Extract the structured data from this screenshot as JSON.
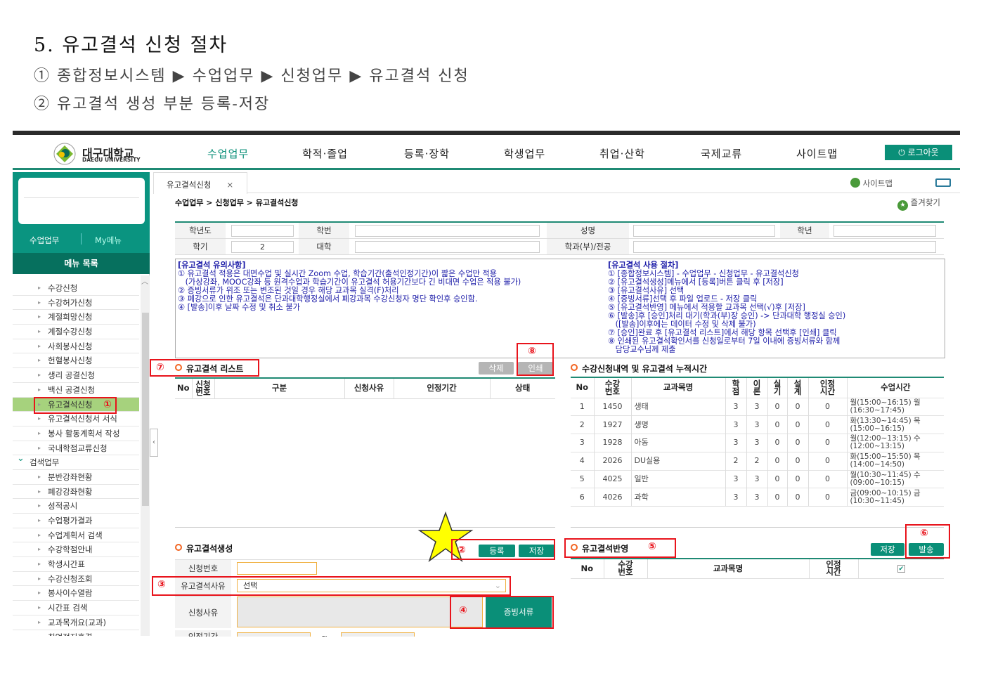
{
  "doc": {
    "title": "5. 유고결석 신청 절차",
    "step1": "① 종합정보시스템 ▶ 수업업무 ▶ 신청업무 ▶ 유고결석 신청",
    "step2": "② 유고결석 생성 부분 등록-저장"
  },
  "header": {
    "logo_ko": "대구대학교",
    "logo_en": "DAEGU UNIVERSITY",
    "nav": [
      "수업업무",
      "학적·졸업",
      "등록·장학",
      "학생업무",
      "취업·산학",
      "국제교류",
      "사이트맵"
    ],
    "logout": "로그아웃",
    "accent": "#0a8f78"
  },
  "sidebar": {
    "tabs": [
      "수업업무",
      "My메뉴"
    ],
    "menu_title": "메뉴 목록",
    "items": [
      "수강신청",
      "수강허가신청",
      "계절희망신청",
      "계절수강신청",
      "사회봉사신청",
      "헌혈봉사신청",
      "생리 공결신청",
      "백신 공결신청",
      "유고결석신청",
      "유고결석신청서 서식",
      "봉사 활동계획서 작성",
      "국내학점교류신청",
      "검색업무",
      "분반강좌현황",
      "폐강강좌현황",
      "성적공시",
      "수업평가결과",
      "수업계획서 검색",
      "수강학점안내",
      "학생시간표",
      "수강신청조회",
      "봉사이수열람",
      "시간표 검색",
      "교과목개요(교과)",
      "취업정지혼결"
    ],
    "selected": "유고결석신청",
    "group": "검색업무"
  },
  "tabbar": {
    "tab": "유고결석신청",
    "close": "×",
    "sitemap": "사이트맵"
  },
  "breadcrumb": "수업업무 > 신청업무 > 유고결석신청",
  "favorites": "즐겨찾기",
  "form": {
    "year_label": "학년도",
    "year": "",
    "name_label": "성명",
    "name": "",
    "dept_label": "학번",
    "grade_label": "학년",
    "grade": "",
    "term_label": "학기",
    "term": "2",
    "college_label": "대학",
    "college": "",
    "major_label": "학과(부)/전공",
    "major": ""
  },
  "notice": {
    "left_title": "[유고결석 유의사항]",
    "left": [
      "① 유고결석 적용은 대면수업 및 실시간 Zoom 수업, 학습기간(출석인정기간)이 짧은 수업만 적용",
      "   (가상강좌, MOOC강좌 등 원격수업과 학습기간이 유고결석 허용기간보다 긴 비대면 수업은 적용 불가)",
      "② 증빙서류가 위조 또는 변조된 것일 경우 해당 교과목 실격(F)처리",
      "③ 폐강으로 인한 유고결석은 단과대학행정실에서 폐강과목 수강신청자 명단 확인후 승인함.",
      "④ [발송]이후 날짜 수정 및 취소 불가"
    ],
    "right_title": "[유고결석 사용 절차]",
    "right": [
      "① [종합정보시스템] - 수업업무 - 신청업무 - 유고결석신청",
      "② [유고결석생성]메뉴에서 [등록]버튼 클릭 후 [저장]",
      "③ [유고결석사유] 선택",
      "④ [증빙서류]선택 후 파일 업로드 - 저장 클릭",
      "⑤ [유고결석반영] 메뉴에서 적용할 교과목 선택(√)후 [저장]",
      "⑥ [발송]후 [승인]처리 대기(학과(부)장 승인) -> 단과대학 행정실 승인)",
      "   ([발송]이후에는 데이터 수정 및 삭제 불가)",
      "⑦ [승인]완료 후 [유고결석 리스트]에서 해당 항목 선택후 [인쇄] 클릭",
      "⑧ 인쇄된 유고결석확인서를 신청일로부터 7일 이내에 증빙서류와 함께",
      "   담당교수님께 제출"
    ]
  },
  "list": {
    "title": "유고결석 리스트",
    "delete": "삭제",
    "print": "인쇄",
    "columns": [
      "No",
      "신청\n번호",
      "구분",
      "신청사유",
      "인정기간",
      "상태"
    ]
  },
  "courses": {
    "title": "수강신청내역 및 유고결석 누적시간",
    "columns": [
      "No",
      "수강\n번호",
      "교과목명",
      "학\n점",
      "이\n론",
      "실\n기",
      "설\n계",
      "인정\n시간",
      "수업시간"
    ],
    "rows": [
      [
        "1",
        "1450",
        "생태",
        "3",
        "3",
        "0",
        "0",
        "0",
        "월(15:00~16:15) 월(16:30~17:45)"
      ],
      [
        "2",
        "1927",
        "생명",
        "3",
        "3",
        "0",
        "0",
        "0",
        "화(13:30~14:45) 목(15:00~16:15)"
      ],
      [
        "3",
        "1928",
        "아동",
        "3",
        "3",
        "0",
        "0",
        "0",
        "월(12:00~13:15) 수(12:00~13:15)"
      ],
      [
        "4",
        "2026",
        "DU실용",
        "2",
        "2",
        "0",
        "0",
        "0",
        "화(15:00~15:50) 목(14:00~14:50)"
      ],
      [
        "5",
        "4025",
        "일반",
        "3",
        "3",
        "0",
        "0",
        "0",
        "월(10:30~11:45) 수(09:00~10:15)"
      ],
      [
        "6",
        "4026",
        "과학",
        "3",
        "3",
        "0",
        "0",
        "0",
        "금(09:00~10:15) 금(10:30~11:45)"
      ]
    ]
  },
  "create": {
    "title": "유고결석생성",
    "register": "등록",
    "save": "저장",
    "no_label": "신청번호",
    "no": "",
    "reason_type_label": "유고결석사유",
    "reason_type": "선택",
    "reason_label": "신청사유",
    "evidence": "증빙서류",
    "period_label": "인정기간",
    "period_sep": "~"
  },
  "apply": {
    "title": "유고결석반영",
    "save": "저장",
    "send": "발송",
    "columns": [
      "No",
      "수강\n번호",
      "교과목명",
      "인정\n시간"
    ],
    "checked": true
  },
  "markers": [
    "①",
    "②",
    "③",
    "④",
    "⑤",
    "⑥",
    "⑦",
    "⑧"
  ]
}
